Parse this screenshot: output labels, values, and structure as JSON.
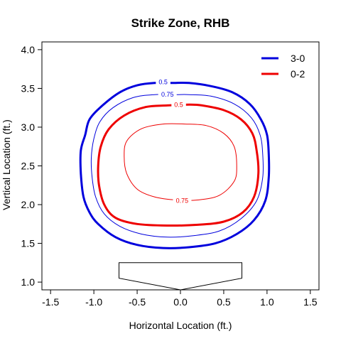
{
  "chart_data": {
    "type": "contour",
    "title": "Strike Zone, RHB",
    "xlabel": "Horizontal Location (ft.)",
    "ylabel": "Vertical Location (ft.)",
    "xlim": [
      -1.6,
      1.6
    ],
    "ylim": [
      0.9,
      4.1
    ],
    "x_ticks": [
      -1.5,
      -1.0,
      -0.5,
      0.0,
      0.5,
      1.0,
      1.5
    ],
    "x_tick_labels": [
      "-1.5",
      "-1.0",
      "-0.5",
      "0.0",
      "0.5",
      "1.0",
      "1.5"
    ],
    "y_ticks": [
      1.0,
      1.5,
      2.0,
      2.5,
      3.0,
      3.5,
      4.0
    ],
    "y_tick_labels": [
      "1.0",
      "1.5",
      "2.0",
      "2.5",
      "3.0",
      "3.5",
      "4.0"
    ],
    "legend": {
      "position": "top-right",
      "entries": [
        {
          "name": "3-0",
          "color": "#0000DD"
        },
        {
          "name": "0-2",
          "color": "#EE0000"
        }
      ]
    },
    "series": [
      {
        "name": "3-0",
        "color": "#0000DD",
        "contours": [
          {
            "level": "0.5",
            "label_text": "0.5",
            "label_at": [
              -0.2,
              3.58
            ],
            "line_width": 3,
            "points": [
              [
                -0.3,
                3.57
              ],
              [
                -0.5,
                3.54
              ],
              [
                -0.7,
                3.45
              ],
              [
                -0.9,
                3.28
              ],
              [
                -1.05,
                3.1
              ],
              [
                -1.1,
                2.9
              ],
              [
                -1.15,
                2.7
              ],
              [
                -1.15,
                2.4
              ],
              [
                -1.12,
                2.1
              ],
              [
                -1.05,
                1.9
              ],
              [
                -0.95,
                1.75
              ],
              [
                -0.75,
                1.58
              ],
              [
                -0.5,
                1.48
              ],
              [
                -0.2,
                1.44
              ],
              [
                0.1,
                1.45
              ],
              [
                0.4,
                1.5
              ],
              [
                0.65,
                1.62
              ],
              [
                0.85,
                1.8
              ],
              [
                0.98,
                2.05
              ],
              [
                1.02,
                2.35
              ],
              [
                1.02,
                2.65
              ],
              [
                1.0,
                2.9
              ],
              [
                0.93,
                3.1
              ],
              [
                0.8,
                3.3
              ],
              [
                0.6,
                3.45
              ],
              [
                0.35,
                3.53
              ],
              [
                0.1,
                3.57
              ],
              [
                -0.1,
                3.57
              ]
            ]
          },
          {
            "level": "0.75",
            "label_text": "0.75",
            "label_at": [
              -0.15,
              3.42
            ],
            "line_width": 1,
            "points": [
              [
                -0.3,
                3.42
              ],
              [
                -0.55,
                3.38
              ],
              [
                -0.78,
                3.25
              ],
              [
                -0.93,
                3.07
              ],
              [
                -1.0,
                2.85
              ],
              [
                -1.03,
                2.6
              ],
              [
                -1.02,
                2.35
              ],
              [
                -0.98,
                2.1
              ],
              [
                -0.88,
                1.88
              ],
              [
                -0.7,
                1.72
              ],
              [
                -0.45,
                1.62
              ],
              [
                -0.15,
                1.58
              ],
              [
                0.15,
                1.6
              ],
              [
                0.45,
                1.66
              ],
              [
                0.7,
                1.82
              ],
              [
                0.88,
                2.05
              ],
              [
                0.95,
                2.35
              ],
              [
                0.95,
                2.65
              ],
              [
                0.92,
                2.9
              ],
              [
                0.82,
                3.12
              ],
              [
                0.62,
                3.3
              ],
              [
                0.35,
                3.4
              ],
              [
                0.1,
                3.42
              ],
              [
                -0.05,
                3.42
              ]
            ]
          }
        ]
      },
      {
        "name": "0-2",
        "color": "#EE0000",
        "contours": [
          {
            "level": "0.5",
            "label_text": "0.5",
            "label_at": [
              -0.02,
              3.29
            ],
            "line_width": 3,
            "points": [
              [
                -0.15,
                3.28
              ],
              [
                -0.4,
                3.26
              ],
              [
                -0.65,
                3.15
              ],
              [
                -0.83,
                2.97
              ],
              [
                -0.92,
                2.75
              ],
              [
                -0.95,
                2.5
              ],
              [
                -0.94,
                2.25
              ],
              [
                -0.88,
                2.0
              ],
              [
                -0.75,
                1.83
              ],
              [
                -0.5,
                1.75
              ],
              [
                -0.15,
                1.73
              ],
              [
                0.2,
                1.74
              ],
              [
                0.5,
                1.78
              ],
              [
                0.72,
                1.9
              ],
              [
                0.85,
                2.1
              ],
              [
                0.9,
                2.4
              ],
              [
                0.88,
                2.7
              ],
              [
                0.83,
                2.92
              ],
              [
                0.7,
                3.1
              ],
              [
                0.5,
                3.22
              ],
              [
                0.25,
                3.28
              ],
              [
                0.1,
                3.29
              ]
            ]
          },
          {
            "level": "0.75",
            "label_text": "0.75",
            "label_at": [
              0.02,
              2.05
            ],
            "line_width": 1,
            "points": [
              [
                -0.2,
                3.04
              ],
              [
                -0.45,
                2.98
              ],
              [
                -0.62,
                2.82
              ],
              [
                -0.65,
                2.62
              ],
              [
                -0.62,
                2.4
              ],
              [
                -0.5,
                2.2
              ],
              [
                -0.3,
                2.1
              ],
              [
                -0.05,
                2.06
              ],
              [
                0.2,
                2.06
              ],
              [
                0.45,
                2.12
              ],
              [
                0.62,
                2.3
              ],
              [
                0.65,
                2.5
              ],
              [
                0.62,
                2.75
              ],
              [
                0.5,
                2.92
              ],
              [
                0.3,
                3.02
              ],
              [
                0.05,
                3.04
              ]
            ]
          }
        ]
      }
    ],
    "home_plate": {
      "color": "#000000",
      "points": [
        [
          -0.71,
          1.25
        ],
        [
          0.71,
          1.25
        ],
        [
          0.71,
          1.05
        ],
        [
          0.0,
          0.9
        ],
        [
          -0.71,
          1.05
        ]
      ]
    }
  }
}
